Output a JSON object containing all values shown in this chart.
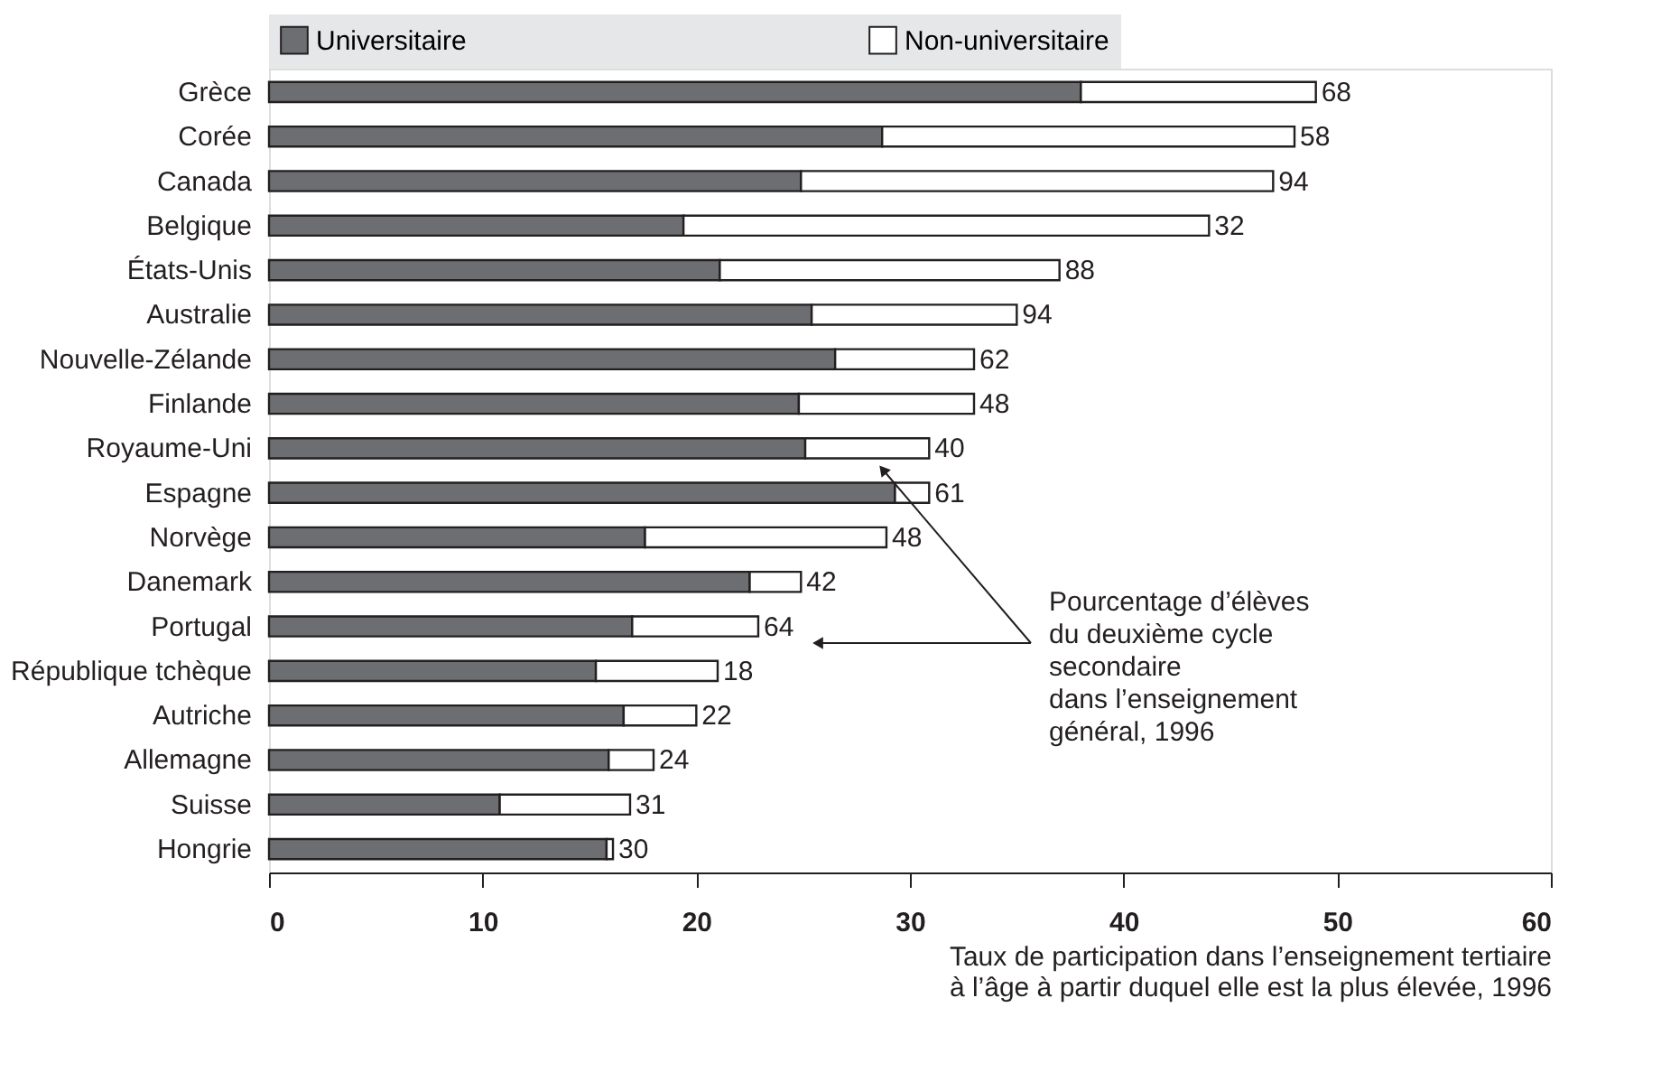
{
  "chart_data": {
    "type": "bar",
    "orientation": "horizontal",
    "stacked": true,
    "categories": [
      "Grèce",
      "Corée",
      "Canada",
      "Belgique",
      "États-Unis",
      "Australie",
      "Nouvelle-Zélande",
      "Finlande",
      "Royaume-Uni",
      "Espagne",
      "Norvège",
      "Danemark",
      "Portugal",
      "République tchèque",
      "Autriche",
      "Allemagne",
      "Suisse",
      "Hongrie"
    ],
    "series": [
      {
        "name": "Universitaire",
        "color": "#6d6e71",
        "values": [
          38,
          28.7,
          24.9,
          19.4,
          21.1,
          25.4,
          26.5,
          24.8,
          25.1,
          29.3,
          17.6,
          22.5,
          17.0,
          15.3,
          16.6,
          15.9,
          10.8,
          15.8
        ]
      },
      {
        "name": "Non-universitaire",
        "color": "#ffffff",
        "values": [
          11,
          19.3,
          22.1,
          24.6,
          15.9,
          9.6,
          6.5,
          8.2,
          5.8,
          1.6,
          11.3,
          2.4,
          5.9,
          5.7,
          3.4,
          2.1,
          6.1,
          0.3
        ]
      }
    ],
    "xlim": [
      0,
      60
    ],
    "xticks": [
      0,
      10,
      20,
      30,
      40,
      50,
      60
    ],
    "xlabel": "Taux de participation dans l’enseignement tertiaire\nà l’âge à partir duquel elle est la plus élevée, 1996",
    "legend": "top",
    "grid": false,
    "annotations": [
      {
        "text": "68",
        "x": 49,
        "y": "Grèce"
      },
      {
        "text": "58",
        "x": 48,
        "y": "Corée"
      },
      {
        "text": "94",
        "x": 47,
        "y": "Canada"
      },
      {
        "text": "32",
        "x": 44,
        "y": "Belgique"
      },
      {
        "text": "88",
        "x": 37,
        "y": "États-Unis"
      },
      {
        "text": "94",
        "x": 35,
        "y": "Australie"
      },
      {
        "text": "62",
        "x": 33,
        "y": "Nouvelle-Zélande"
      },
      {
        "text": "48",
        "x": 33,
        "y": "Finlande"
      },
      {
        "text": "40",
        "x": 30.9,
        "y": "Royaume-Uni"
      },
      {
        "text": "61",
        "x": 30.9,
        "y": "Espagne"
      },
      {
        "text": "48",
        "x": 28.9,
        "y": "Norvège"
      },
      {
        "text": "42",
        "x": 24.9,
        "y": "Danemark"
      },
      {
        "text": "64",
        "x": 22.9,
        "y": "Portugal"
      },
      {
        "text": "18",
        "x": 21,
        "y": "République tchèque"
      },
      {
        "text": "22",
        "x": 20,
        "y": "Autriche"
      },
      {
        "text": "24",
        "x": 18,
        "y": "Allemagne"
      },
      {
        "text": "31",
        "x": 16.9,
        "y": "Suisse"
      },
      {
        "text": "30",
        "x": 16.1,
        "y": "Hongrie"
      },
      "Pourcentage d’élèves\ndu deuxième cycle\nsecondaire\ndans l’enseignement\ngénéral, 1996"
    ]
  }
}
